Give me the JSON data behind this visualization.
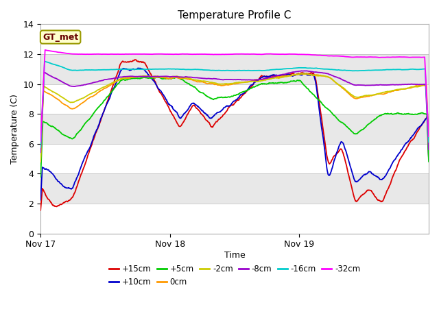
{
  "title": "Temperature Profile C",
  "xlabel": "Time",
  "ylabel": "Temperature (C)",
  "ylim": [
    0,
    14
  ],
  "annotation": "GT_met",
  "series_colors": {
    "+15cm": "#dd0000",
    "+10cm": "#0000cc",
    "+5cm": "#00cc00",
    "0cm": "#ff9900",
    "-2cm": "#cccc00",
    "-8cm": "#9900cc",
    "-16cm": "#00cccc",
    "-32cm": "#ff00ff"
  },
  "xtick_labels": [
    "Nov 17",
    "Nov 18",
    "Nov 19"
  ],
  "xtick_positions": [
    0,
    288,
    576
  ],
  "total_points": 865,
  "band_colors": [
    "#ffffff",
    "#e8e8e8",
    "#ffffff",
    "#e8e8e8",
    "#ffffff",
    "#e8e8e8",
    "#ffffff"
  ]
}
